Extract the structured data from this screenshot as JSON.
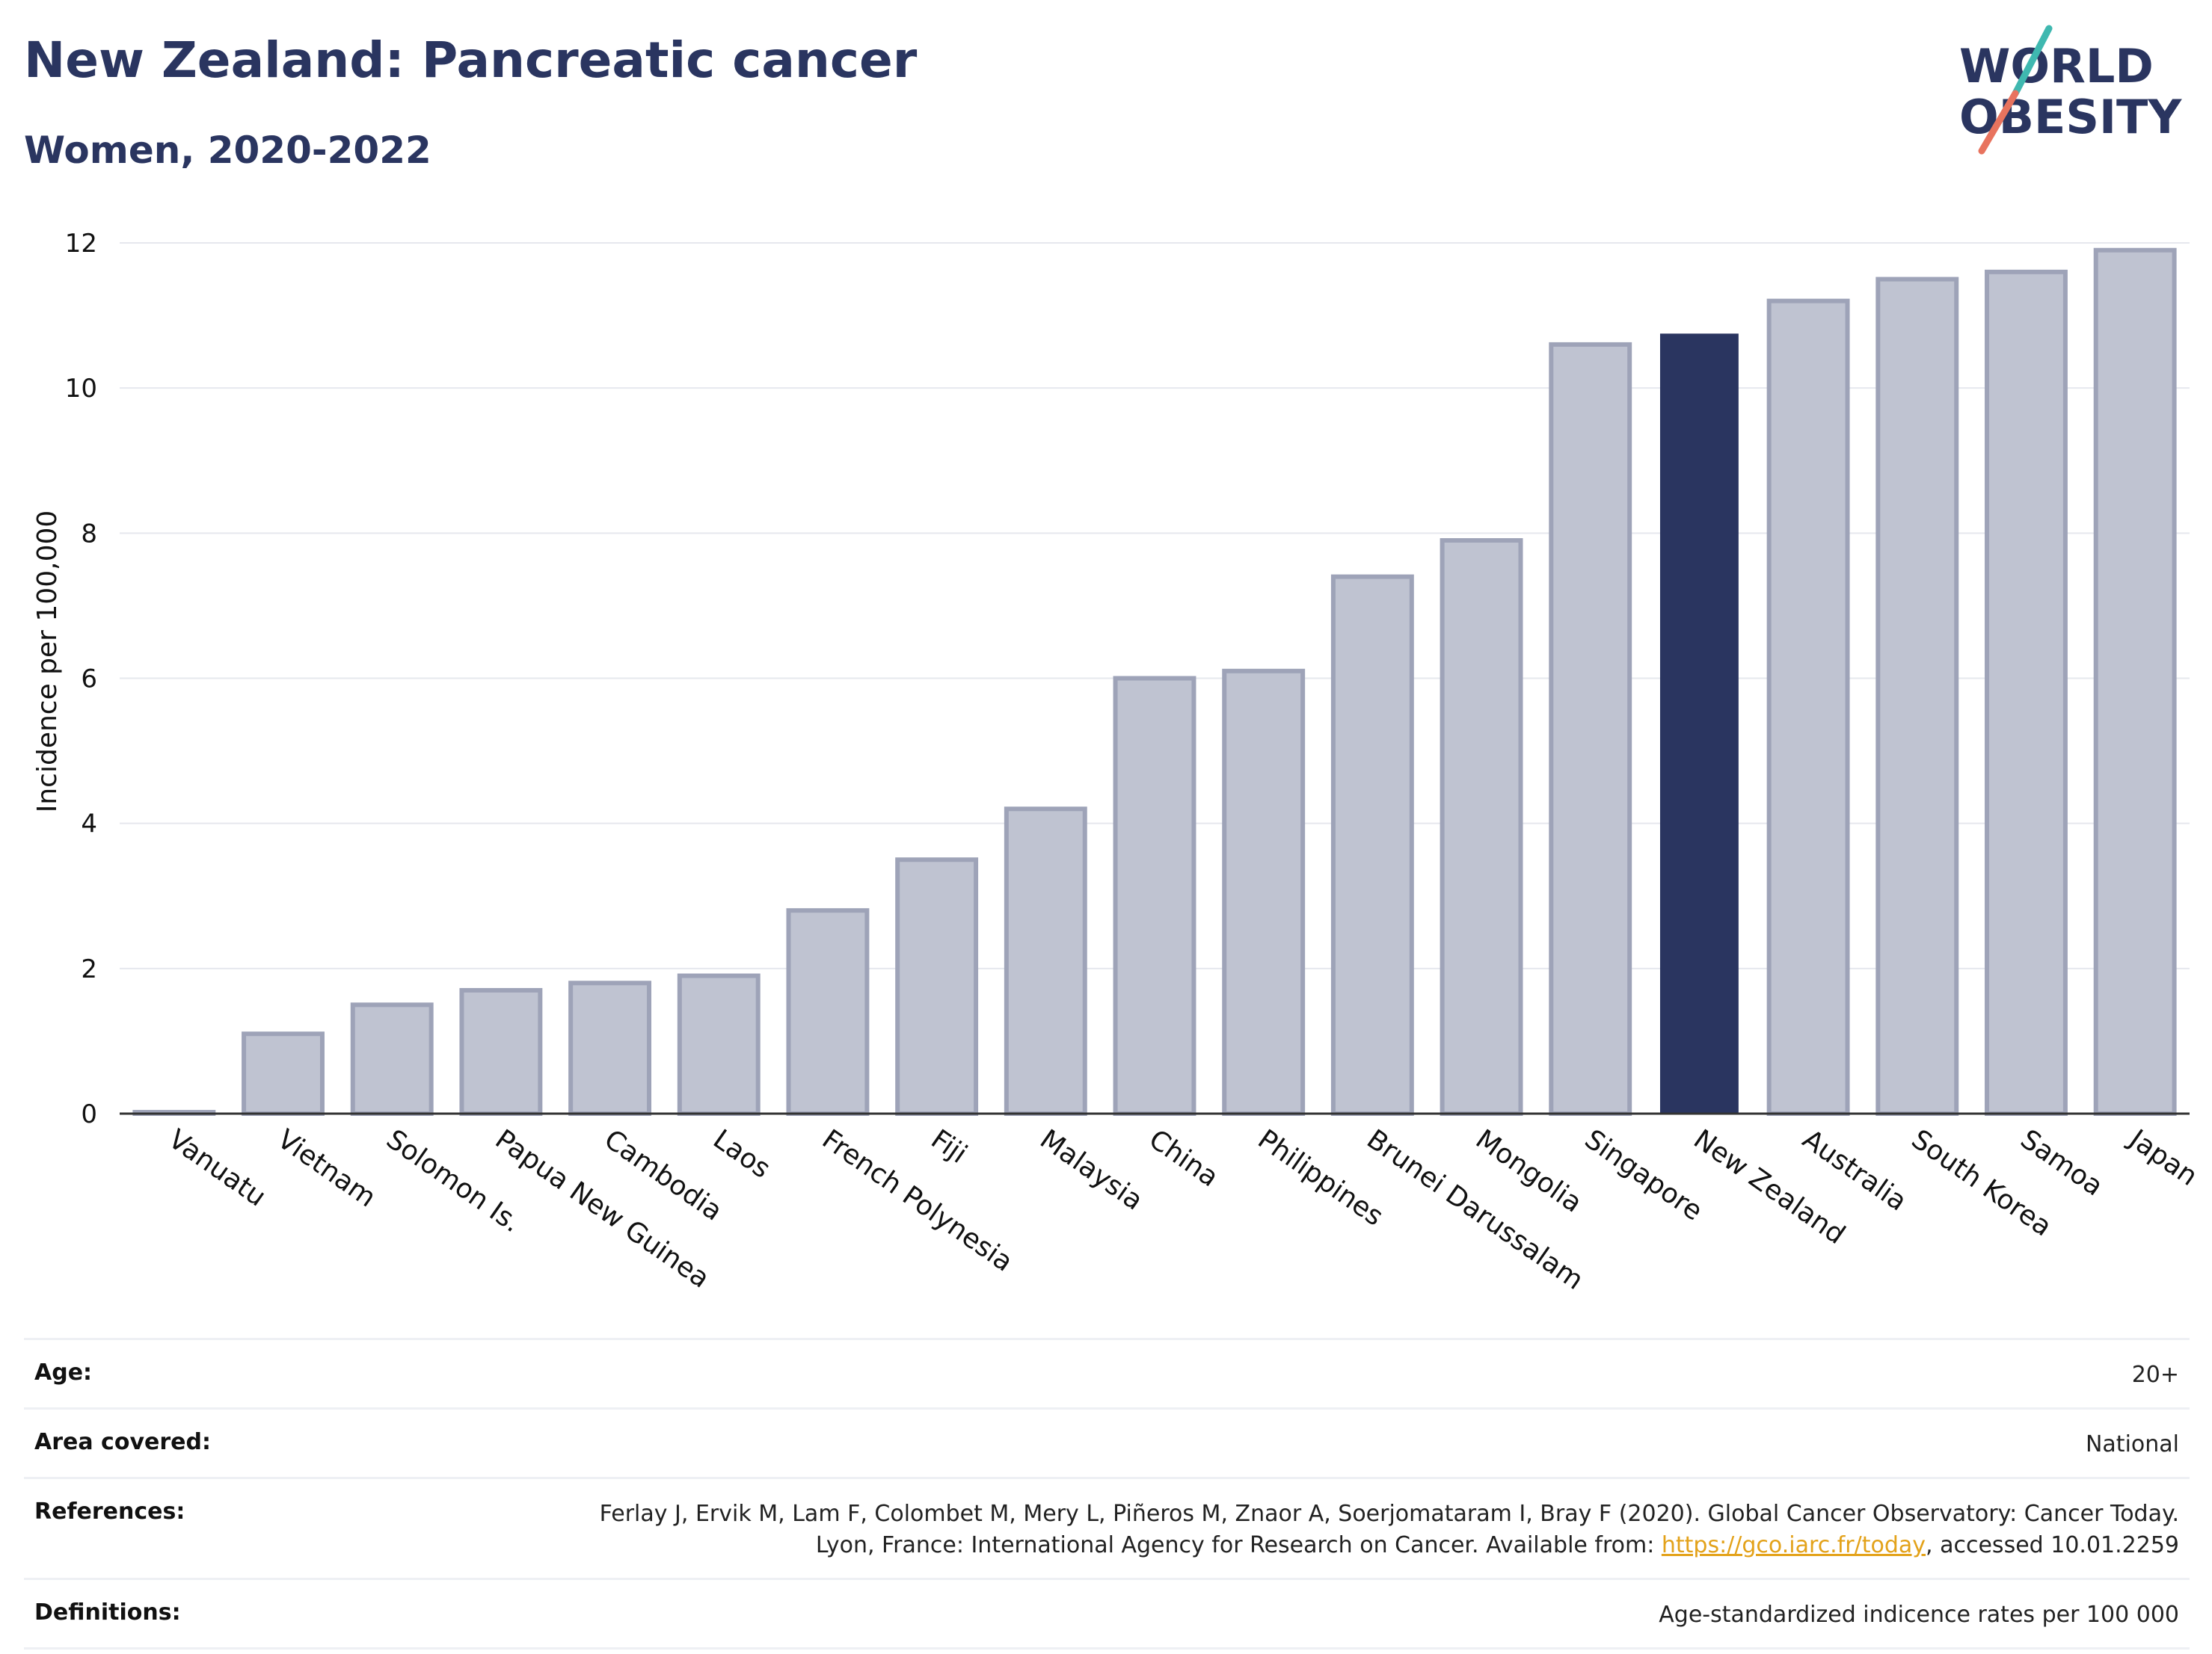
{
  "header": {
    "title": "New Zealand: Pancreatic cancer",
    "subtitle": "Women, 2020-2022"
  },
  "logo": {
    "line1": "WORLD",
    "line2": "OBESITY"
  },
  "colors": {
    "highlight": "#2a3560",
    "bar_fill": "#bfc3d1",
    "bar_stroke": "#9ea3b8",
    "accent_teal": "#3fb8b0",
    "accent_coral": "#e8735e"
  },
  "chart_data": {
    "type": "bar",
    "ylabel": "Incidence per 100,000",
    "ylim": [
      0,
      12
    ],
    "yticks": [
      0,
      2,
      4,
      6,
      8,
      10,
      12
    ],
    "categories": [
      "Vanuatu",
      "Vietnam",
      "Solomon Is.",
      "Papua New Guinea",
      "Cambodia",
      "Laos",
      "French Polynesia",
      "Fiji",
      "Malaysia",
      "China",
      "Philippines",
      "Brunei Darussalam",
      "Mongolia",
      "Singapore",
      "New Zealand",
      "Australia",
      "South Korea",
      "Samoa",
      "Japan"
    ],
    "values": [
      0.02,
      1.1,
      1.5,
      1.7,
      1.8,
      1.9,
      2.8,
      3.5,
      4.2,
      6.0,
      6.1,
      7.4,
      7.9,
      10.6,
      10.75,
      11.2,
      11.5,
      11.6,
      11.9
    ],
    "highlight": "New Zealand",
    "grid": true
  },
  "meta": {
    "age": {
      "label": "Age:",
      "value": "20+"
    },
    "area": {
      "label": "Area covered:",
      "value": "National"
    },
    "references": {
      "label": "References:",
      "text_before": "Ferlay J, Ervik M, Lam F, Colombet M, Mery L, Piñeros M, Znaor A, Soerjomataram I, Bray F (2020). Global Cancer Observatory: Cancer Today. Lyon, France: International Agency for Research on Cancer. Available from: ",
      "link": "https://gco.iarc.fr/today",
      "text_after": ", accessed 10.01.2259"
    },
    "definitions": {
      "label": "Definitions:",
      "value": "Age-standardized indicence rates per 100 000"
    }
  }
}
